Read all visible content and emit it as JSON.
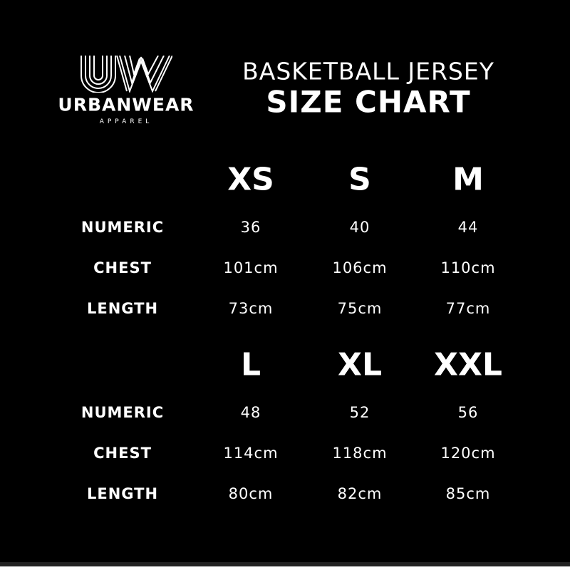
{
  "logo": {
    "mark": "UW",
    "brand": "URBANWEAR",
    "tagline": "APPAREL"
  },
  "header": {
    "line1": "BASKETBALL JERSEY",
    "line2": "SIZE CHART"
  },
  "blocks": [
    {
      "sizes": [
        "XS",
        "S",
        "M"
      ],
      "rows": [
        {
          "label": "NUMERIC",
          "values": [
            "36",
            "40",
            "44"
          ]
        },
        {
          "label": "CHEST",
          "values": [
            "101cm",
            "106cm",
            "110cm"
          ]
        },
        {
          "label": "LENGTH",
          "values": [
            "73cm",
            "75cm",
            "77cm"
          ]
        }
      ]
    },
    {
      "sizes": [
        "L",
        "XL",
        "XXL"
      ],
      "rows": [
        {
          "label": "NUMERIC",
          "values": [
            "48",
            "52",
            "56"
          ]
        },
        {
          "label": "CHEST",
          "values": [
            "114cm",
            "118cm",
            "120cm"
          ]
        },
        {
          "label": "LENGTH",
          "values": [
            "80cm",
            "82cm",
            "85cm"
          ]
        }
      ]
    }
  ],
  "colors": {
    "background": "#000000",
    "text": "#ffffff"
  }
}
